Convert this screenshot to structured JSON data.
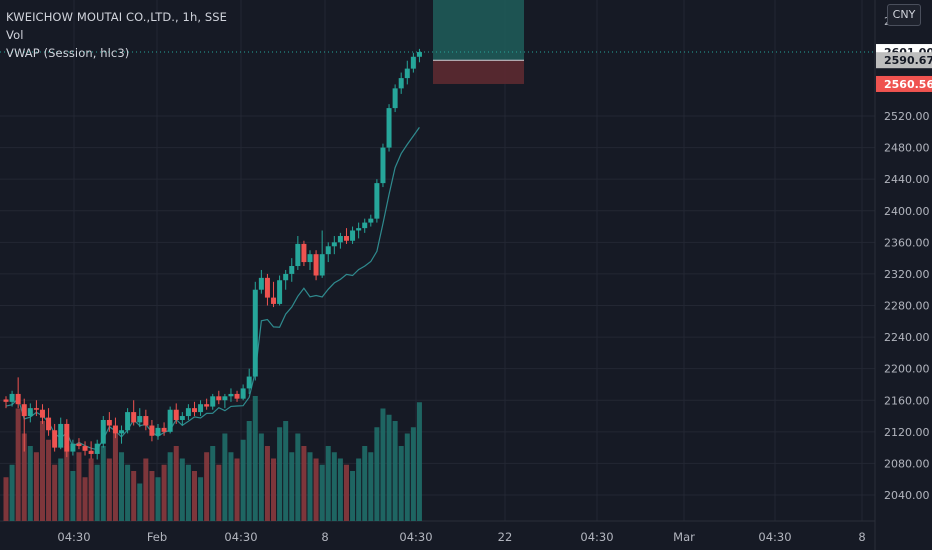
{
  "legend": {
    "symbol_line": "KWEICHOW MOUTAI CO.,LTD., 1h, SSE",
    "volume_label": "Vol",
    "vwap_label": "VWAP (Session, hlc3)"
  },
  "currency_button": "CNY",
  "price_axis": {
    "ticks": [
      "2040.00",
      "2080.00",
      "2120.00",
      "2160.00",
      "2200.00",
      "2240.00",
      "2280.00",
      "2320.00",
      "2360.00",
      "2400.00",
      "2440.00",
      "2480.00",
      "2520.00"
    ],
    "top_partial_tick": "2"
  },
  "time_axis": {
    "labels": [
      "04:30",
      "Feb",
      "04:30",
      "8",
      "04:30",
      "22",
      "04:30",
      "Mar",
      "04:30",
      "8"
    ]
  },
  "price_tags": {
    "last": {
      "label": "2601.00",
      "value": 2601.0,
      "color": "#26a69a"
    },
    "vwap": {
      "label": "2590.67",
      "value": 2590.67,
      "color": "#bdbdbd"
    },
    "stop": {
      "label": "2560.56",
      "value": 2560.56,
      "color": "#ef5350"
    }
  },
  "position_tool": {
    "entry": 2590.67,
    "target": 2660.0,
    "stop": 2560.56,
    "profit_color": "#1e5a58",
    "loss_color": "#5c2a31"
  },
  "colors": {
    "up": "#26a69a",
    "down": "#ef5350",
    "vwap": "#2f8a8e",
    "grid": "#232733",
    "background": "#161a25",
    "text": "#b2b5be"
  },
  "chart_data": {
    "type": "candlestick",
    "price_range": [
      2011,
      2632
    ],
    "candles": [
      [
        2161,
        2165,
        2150,
        2158
      ],
      [
        2158,
        2172,
        2152,
        2168
      ],
      [
        2168,
        2189,
        2150,
        2155
      ],
      [
        2155,
        2162,
        2095,
        2140
      ],
      [
        2140,
        2156,
        2132,
        2150
      ],
      [
        2150,
        2160,
        2140,
        2148
      ],
      [
        2148,
        2155,
        2130,
        2138
      ],
      [
        2138,
        2150,
        2115,
        2122
      ],
      [
        2122,
        2130,
        2095,
        2100
      ],
      [
        2100,
        2138,
        2098,
        2130
      ],
      [
        2130,
        2136,
        2088,
        2095
      ],
      [
        2095,
        2110,
        2090,
        2105
      ],
      [
        2105,
        2112,
        2098,
        2102
      ],
      [
        2102,
        2108,
        2090,
        2096
      ],
      [
        2096,
        2108,
        2086,
        2092
      ],
      [
        2092,
        2110,
        2085,
        2105
      ],
      [
        2105,
        2140,
        2100,
        2135
      ],
      [
        2135,
        2145,
        2120,
        2128
      ],
      [
        2128,
        2138,
        2112,
        2118
      ],
      [
        2118,
        2128,
        2105,
        2122
      ],
      [
        2122,
        2150,
        2118,
        2145
      ],
      [
        2145,
        2160,
        2128,
        2132
      ],
      [
        2132,
        2150,
        2126,
        2140
      ],
      [
        2140,
        2148,
        2122,
        2128
      ],
      [
        2128,
        2135,
        2108,
        2115
      ],
      [
        2115,
        2130,
        2110,
        2125
      ],
      [
        2125,
        2132,
        2115,
        2120
      ],
      [
        2120,
        2152,
        2118,
        2148
      ],
      [
        2148,
        2156,
        2130,
        2135
      ],
      [
        2135,
        2145,
        2128,
        2140
      ],
      [
        2140,
        2155,
        2135,
        2150
      ],
      [
        2150,
        2158,
        2140,
        2145
      ],
      [
        2145,
        2160,
        2140,
        2155
      ],
      [
        2155,
        2162,
        2148,
        2152
      ],
      [
        2152,
        2168,
        2148,
        2165
      ],
      [
        2165,
        2172,
        2155,
        2160
      ],
      [
        2160,
        2168,
        2150,
        2165
      ],
      [
        2165,
        2175,
        2158,
        2168
      ],
      [
        2168,
        2172,
        2158,
        2162
      ],
      [
        2162,
        2180,
        2160,
        2175
      ],
      [
        2175,
        2200,
        2168,
        2190
      ],
      [
        2190,
        2310,
        2185,
        2300
      ],
      [
        2300,
        2325,
        2295,
        2315
      ],
      [
        2315,
        2320,
        2280,
        2290
      ],
      [
        2290,
        2310,
        2278,
        2282
      ],
      [
        2282,
        2318,
        2280,
        2312
      ],
      [
        2312,
        2325,
        2300,
        2320
      ],
      [
        2320,
        2340,
        2310,
        2330
      ],
      [
        2330,
        2368,
        2325,
        2358
      ],
      [
        2358,
        2362,
        2330,
        2335
      ],
      [
        2335,
        2350,
        2325,
        2345
      ],
      [
        2345,
        2350,
        2312,
        2318
      ],
      [
        2318,
        2375,
        2315,
        2345
      ],
      [
        2345,
        2360,
        2335,
        2355
      ],
      [
        2355,
        2368,
        2345,
        2360
      ],
      [
        2360,
        2372,
        2352,
        2368
      ],
      [
        2368,
        2378,
        2358,
        2362
      ],
      [
        2362,
        2380,
        2358,
        2375
      ],
      [
        2375,
        2385,
        2365,
        2378
      ],
      [
        2378,
        2390,
        2372,
        2385
      ],
      [
        2385,
        2395,
        2380,
        2390
      ],
      [
        2390,
        2440,
        2385,
        2435
      ],
      [
        2435,
        2485,
        2430,
        2480
      ],
      [
        2480,
        2535,
        2475,
        2530
      ],
      [
        2530,
        2560,
        2525,
        2555
      ],
      [
        2555,
        2575,
        2548,
        2568
      ],
      [
        2568,
        2590,
        2560,
        2580
      ],
      [
        2580,
        2600,
        2575,
        2595
      ],
      [
        2595,
        2605,
        2588,
        2601
      ]
    ],
    "volume_heights": [
      0.35,
      0.45,
      0.9,
      0.7,
      0.6,
      0.55,
      0.8,
      0.65,
      0.45,
      0.5,
      0.6,
      0.4,
      0.55,
      0.35,
      0.5,
      0.45,
      0.6,
      0.5,
      0.7,
      0.55,
      0.45,
      0.4,
      0.3,
      0.5,
      0.4,
      0.35,
      0.45,
      0.55,
      0.6,
      0.5,
      0.45,
      0.4,
      0.35,
      0.55,
      0.6,
      0.45,
      0.7,
      0.55,
      0.5,
      0.65,
      0.8,
      1.0,
      0.7,
      0.6,
      0.5,
      0.75,
      0.8,
      0.55,
      0.7,
      0.6,
      0.55,
      0.5,
      0.45,
      0.6,
      0.55,
      0.5,
      0.45,
      0.4,
      0.5,
      0.6,
      0.55,
      0.75,
      0.9,
      0.85,
      0.8,
      0.6,
      0.7,
      0.75,
      0.95
    ]
  }
}
